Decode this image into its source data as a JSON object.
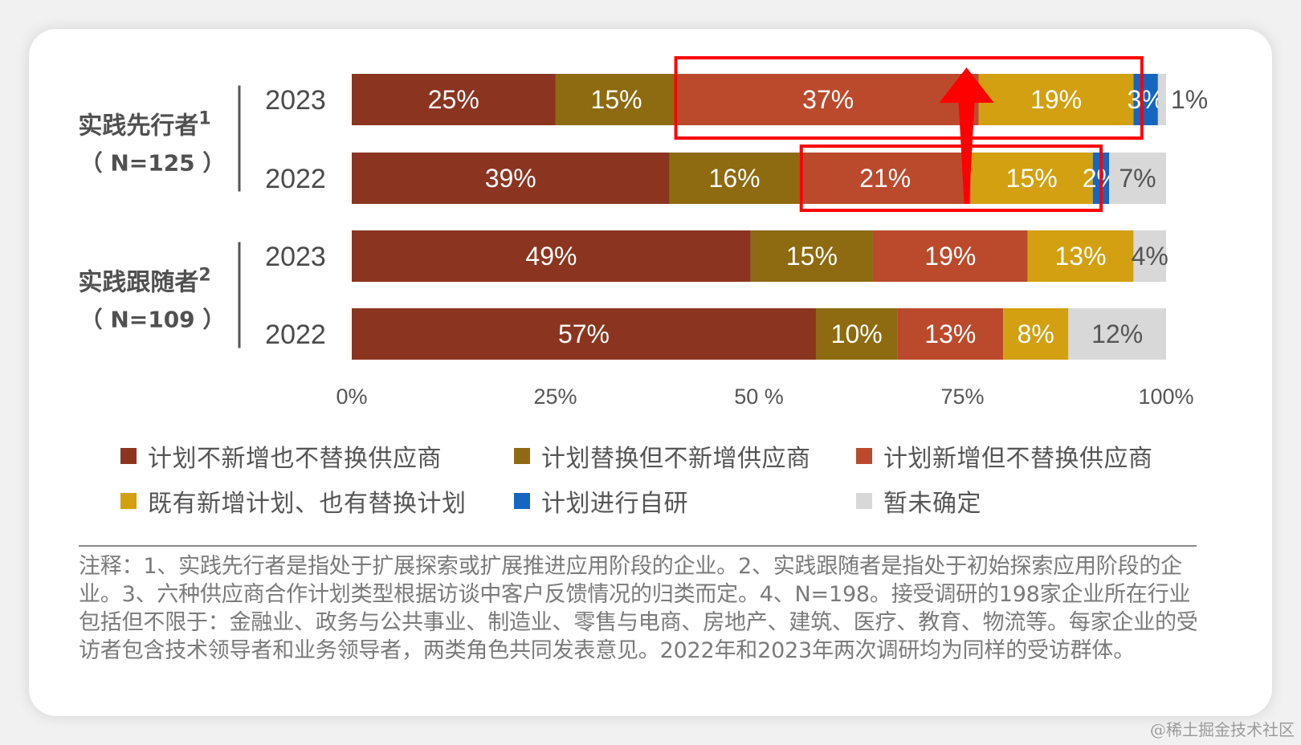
{
  "chart_data": {
    "type": "bar",
    "orientation": "horizontal",
    "stacked": "percent",
    "groups": [
      {
        "label": "实践先行者",
        "superscript": "1",
        "n_label": "（ N=125 ）",
        "years": [
          "2023",
          "2022"
        ]
      },
      {
        "label": "实践跟随者",
        "superscript": "2",
        "n_label": "（ N=109 ）",
        "years": [
          "2023",
          "2022"
        ]
      }
    ],
    "categories": [
      "实践先行者 2023",
      "实践先行者 2022",
      "实践跟随者 2023",
      "实践跟随者 2022"
    ],
    "series": [
      {
        "name": "计划不新增也不替换供应商",
        "color": "#8b3520",
        "values": [
          25,
          39,
          49,
          57
        ],
        "labels": [
          "25%",
          "39%",
          "49%",
          "57%"
        ]
      },
      {
        "name": "计划替换但不新增供应商",
        "color": "#8e6a10",
        "values": [
          15,
          16,
          15,
          10
        ],
        "labels": [
          "15%",
          "16%",
          "15%",
          "10%"
        ]
      },
      {
        "name": "计划新增但不替换供应商",
        "color": "#bb4a2c",
        "values": [
          37,
          21,
          19,
          13
        ],
        "labels": [
          "37%",
          "21%",
          "19%",
          "13%"
        ]
      },
      {
        "name": "既有新增计划、也有替换计划",
        "color": "#d2a010",
        "values": [
          19,
          15,
          13,
          8
        ],
        "labels": [
          "19%",
          "15%",
          "13%",
          "8%"
        ]
      },
      {
        "name": "计划进行自研",
        "color": "#1566c0",
        "values": [
          3,
          2,
          0,
          0
        ],
        "labels": [
          "3%",
          "2%",
          "",
          ""
        ]
      },
      {
        "name": "暂未确定",
        "color": "#d8d8d8",
        "values": [
          1,
          7,
          4,
          12
        ],
        "labels": [
          "1%",
          "7%",
          "4%",
          "12%"
        ]
      }
    ],
    "xlim": [
      0,
      100
    ],
    "x_ticks": [
      "0%",
      "25%",
      "50 %",
      "75%",
      "100%"
    ],
    "highlight": {
      "color": "#ff0000",
      "note": "red boxes around 计划新增但不替换供应商 + 既有新增计划、也有替换计划 for 实践先行者 2023 and 2022, with upward arrow"
    }
  },
  "legend": [
    {
      "label": "计划不新增也不替换供应商",
      "color": "#8b3520"
    },
    {
      "label": "计划替换但不新增供应商",
      "color": "#8e6a10"
    },
    {
      "label": "计划新增但不替换供应商",
      "color": "#bb4a2c"
    },
    {
      "label": "既有新增计划、也有替换计划",
      "color": "#d2a010"
    },
    {
      "label": "计划进行自研",
      "color": "#1566c0"
    },
    {
      "label": "暂未确定",
      "color": "#d8d8d8"
    }
  ],
  "note": "注释：1、实践先行者是指处于扩展探索或扩展推进应用阶段的企业。2、实践跟随者是指处于初始探索应用阶段的企业。3、六种供应商合作计划类型根据访谈中客户反馈情况的归类而定。4、N=198。接受调研的198家企业所在行业包括但不限于：金融业、政务与公共事业、制造业、零售与电商、房地产、建筑、医疗、教育、物流等。每家企业的受访者包含技术领导者和业务领导者，两类角色共同发表意见。2022年和2023年两次调研均为同样的受访群体。",
  "watermark": "@稀土掘金技术社区"
}
